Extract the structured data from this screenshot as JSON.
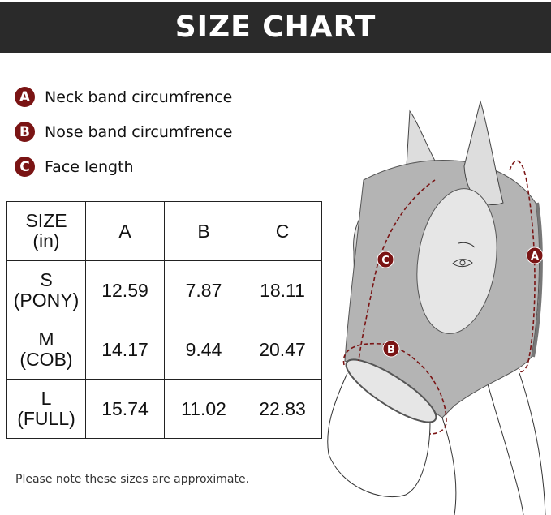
{
  "header": {
    "title": "SIZE CHART"
  },
  "legend": [
    {
      "badge": "A",
      "label": "Neck band circumfrence"
    },
    {
      "badge": "B",
      "label": "Nose band circumfrence"
    },
    {
      "badge": "C",
      "label": "Face length"
    }
  ],
  "table": {
    "headers": [
      "SIZE\n(in)",
      "A",
      "B",
      "C"
    ],
    "rows": [
      {
        "size": "S",
        "sub": "(PONY)",
        "a": "12.59",
        "b": "7.87",
        "c": "18.11"
      },
      {
        "size": "M",
        "sub": "(COB)",
        "a": "14.17",
        "b": "9.44",
        "c": "20.47"
      },
      {
        "size": "L",
        "sub": "(FULL)",
        "a": "15.74",
        "b": "11.02",
        "c": "22.83"
      }
    ]
  },
  "note": "Please note these sizes are approximate.",
  "diagram": {
    "labels": [
      "A",
      "B",
      "C"
    ]
  },
  "colors": {
    "header": "#2a2a2a",
    "badge": "#7a1414",
    "mask": "#b4b4b4"
  }
}
